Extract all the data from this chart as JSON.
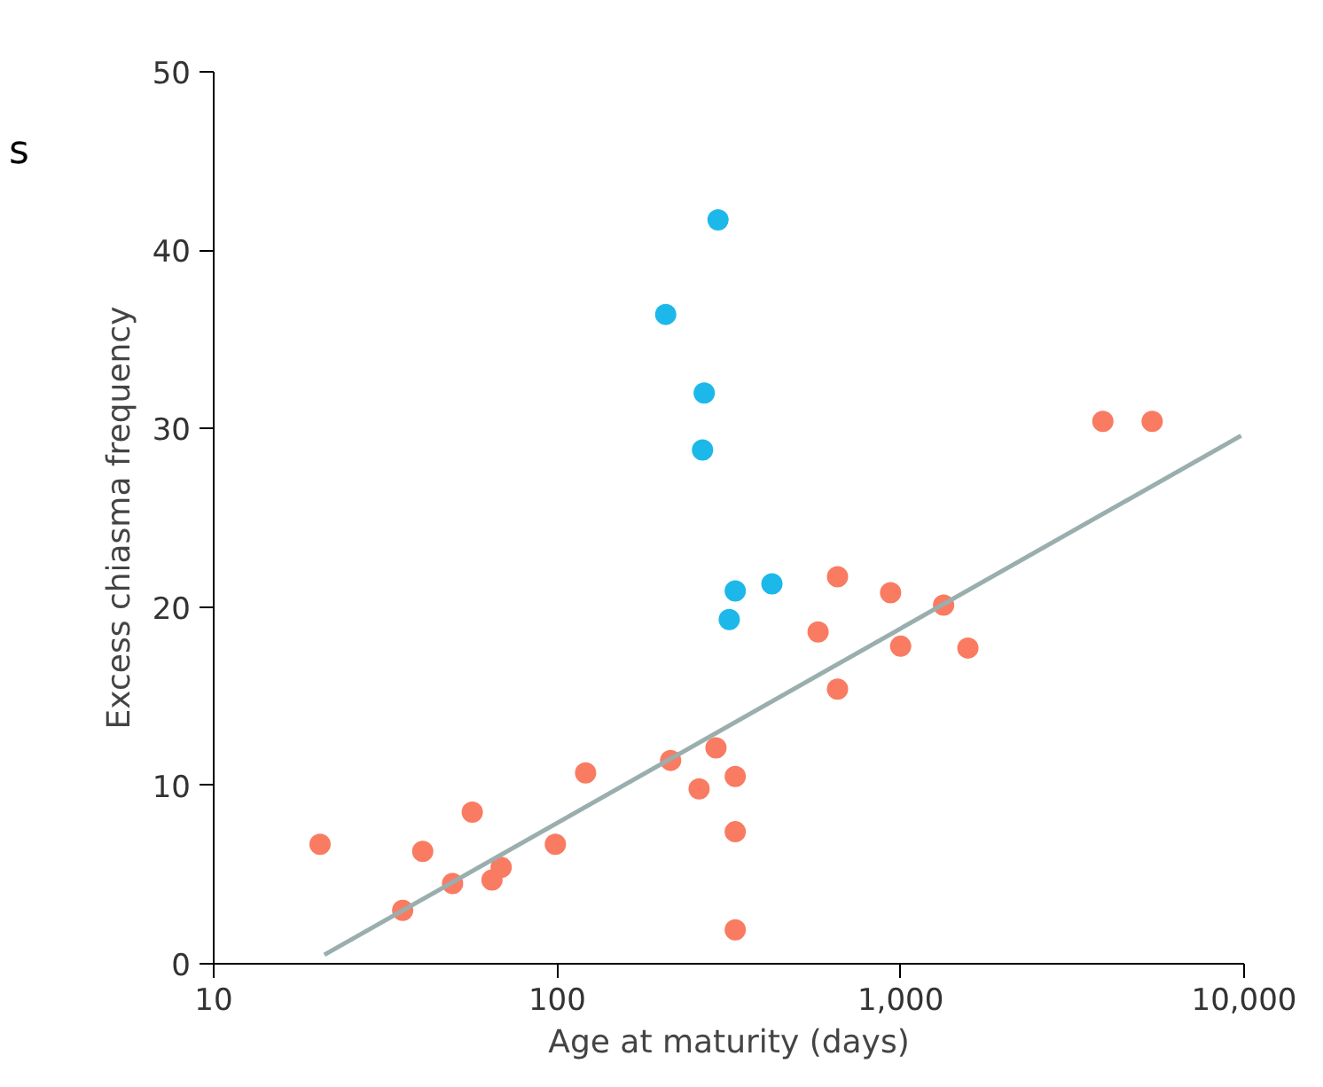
{
  "chart_data": {
    "type": "scatter",
    "xlabel": "Age at maturity (days)",
    "ylabel": "Excess chiasma frequency",
    "log": "x",
    "xlim": [
      10,
      10000
    ],
    "ylim": [
      0,
      50
    ],
    "xticks": [
      10,
      100,
      {
        "value": 1000,
        "label": "1,000"
      },
      {
        "value": 10000,
        "label": "10,000"
      }
    ],
    "yticks": [
      0,
      10,
      20,
      30,
      40,
      50
    ],
    "grid": false,
    "marker": "circle",
    "annotations": [
      "s"
    ],
    "series": [
      {
        "color": "#f97b62",
        "x": [
          20.4,
          35.5,
          40.6,
          49.6,
          56.6,
          64.6,
          68.7,
          98.8,
          121,
          214,
          259,
          290,
          330,
          330,
          330,
          575,
          655,
          655,
          935,
          1000,
          1334,
          1570,
          3880,
          5400
        ],
        "values": [
          6.7,
          3.0,
          6.3,
          4.5,
          8.5,
          4.7,
          5.4,
          6.7,
          10.7,
          11.4,
          9.8,
          12.1,
          10.5,
          7.4,
          1.9,
          18.6,
          21.7,
          15.4,
          20.8,
          17.8,
          20.1,
          17.7,
          30.4,
          30.4
        ]
      },
      {
        "color": "#1cb8ea",
        "x": [
          294,
          207,
          268,
          265,
          330,
          317,
          422
        ],
        "values": [
          41.7,
          36.4,
          32.0,
          28.8,
          20.9,
          19.3,
          21.3
        ]
      },
      {
        "type": "line",
        "marker": "none",
        "color": "#9aaeae",
        "x": [
          21,
          9800
        ],
        "values": [
          0.5,
          29.6
        ]
      }
    ]
  }
}
